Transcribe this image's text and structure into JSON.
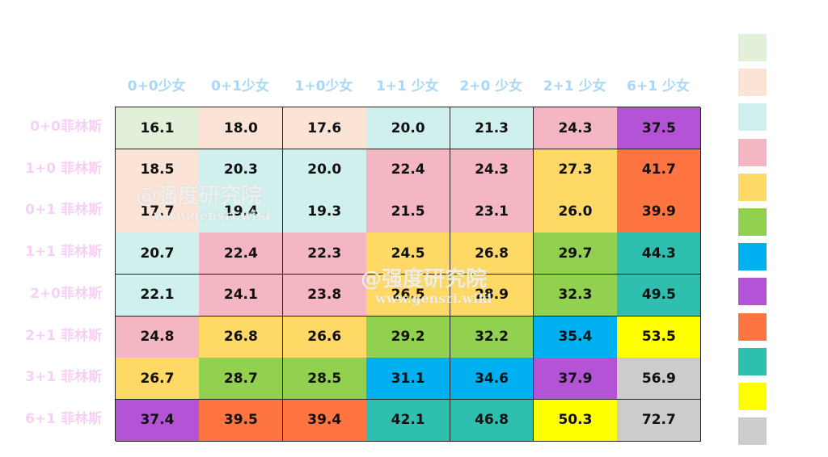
{
  "chart_data": {
    "type": "heatmap",
    "title": "",
    "columns": [
      "0+0少女",
      "0+1少女",
      "1+0少女",
      "1+1 少女",
      "2+0 少女",
      "2+1 少女",
      "6+1 少女"
    ],
    "rows": [
      "0+0菲林斯",
      "1+0 菲林斯",
      "0+1 菲林斯",
      "1+1  菲林斯",
      "2+0菲林斯",
      "2+1 菲林斯",
      "3+1 菲林斯",
      "6+1 菲林斯"
    ],
    "values": [
      [
        "16.1",
        "18.0",
        "17.6",
        "20.0",
        "21.3",
        "24.3",
        "37.5"
      ],
      [
        "18.5",
        "20.3",
        "20.0",
        "22.4",
        "24.3",
        "27.3",
        "41.7"
      ],
      [
        "17.7",
        "19.4",
        "19.3",
        "21.5",
        "23.1",
        "26.0",
        "39.9"
      ],
      [
        "20.7",
        "22.4",
        "22.3",
        "24.5",
        "26.8",
        "29.7",
        "44.3"
      ],
      [
        "22.1",
        "24.1",
        "23.8",
        "26.5",
        "28.9",
        "32.3",
        "49.5"
      ],
      [
        "24.8",
        "26.8",
        "26.6",
        "29.2",
        "32.2",
        "35.4",
        "53.5"
      ],
      [
        "26.7",
        "28.7",
        "28.5",
        "31.1",
        "34.6",
        "37.9",
        "56.9"
      ],
      [
        "37.4",
        "39.5",
        "39.4",
        "42.1",
        "46.8",
        "50.3",
        "72.7"
      ]
    ],
    "color_levels": [
      0,
      1,
      1,
      2,
      2,
      3,
      7,
      1,
      2,
      2,
      3,
      3,
      4,
      8,
      1,
      2,
      2,
      3,
      3,
      4,
      8,
      2,
      3,
      3,
      4,
      4,
      5,
      9,
      2,
      3,
      3,
      4,
      4,
      5,
      9,
      3,
      4,
      4,
      5,
      5,
      6,
      10,
      4,
      5,
      5,
      6,
      6,
      7,
      11,
      7,
      8,
      8,
      9,
      9,
      10,
      11
    ],
    "legend_colors": [
      "#e2efd9",
      "#fbe4d5",
      "#d0f0ee",
      "#f4b6c2",
      "#ffd966",
      "#92d050",
      "#00b0f0",
      "#b553d6",
      "#ff7541",
      "#2ebfaf",
      "#ffff00",
      "#cccccc"
    ],
    "grid": true,
    "legend_placement": "right"
  },
  "watermark": {
    "title": "@强度研究院",
    "url": "www.gensri.wiki"
  }
}
